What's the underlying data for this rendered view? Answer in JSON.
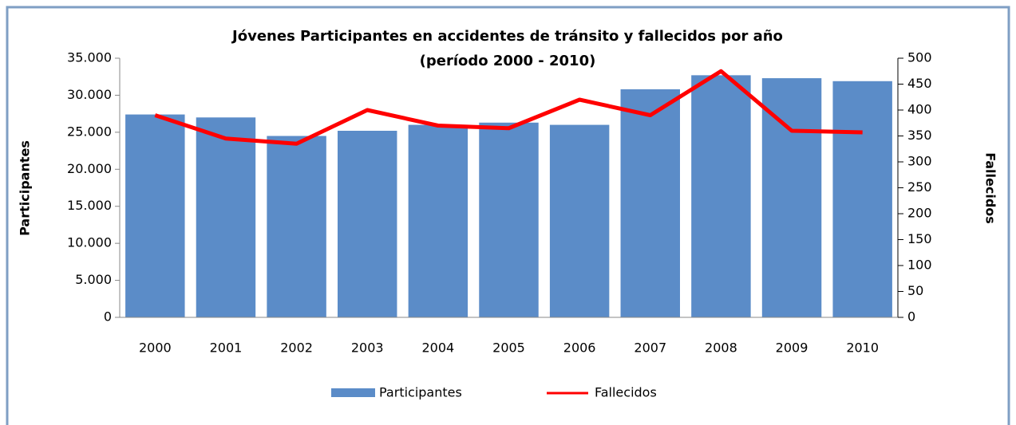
{
  "chart_data": {
    "type": "bar_line",
    "title": "Jóvenes Participantes en accidentes de tránsito y fallecidos por año",
    "subtitle": "(período 2000 - 2010)",
    "ylabel": "Participantes",
    "y2label": "Fallecidos",
    "categories": [
      "2000",
      "2001",
      "2002",
      "2003",
      "2004",
      "2005",
      "2006",
      "2007",
      "2008",
      "2009",
      "2010"
    ],
    "series": [
      {
        "name": "Participantes",
        "type": "bar",
        "color": "#5b8cc8",
        "values": [
          27400,
          27000,
          24500,
          25200,
          26000,
          26300,
          26000,
          30800,
          32700,
          32300,
          31900
        ]
      },
      {
        "name": "Fallecidos",
        "type": "line",
        "axis": "y2",
        "color": "#ff0000",
        "values": [
          390,
          345,
          335,
          400,
          370,
          365,
          420,
          390,
          475,
          360,
          357
        ]
      }
    ],
    "ylim": [
      0,
      35000
    ],
    "yticks": [
      0,
      {
        "value": 5000,
        "label": "5.000"
      },
      {
        "value": 10000,
        "label": "10.000"
      },
      {
        "value": 15000,
        "label": "15.000"
      },
      {
        "value": 20000,
        "label": "20.000"
      },
      {
        "value": 25000,
        "label": "25.000"
      },
      {
        "value": 30000,
        "label": "30.000"
      },
      {
        "value": 35000,
        "label": "35.000"
      }
    ],
    "y2lim": [
      0,
      500
    ],
    "y2ticks": [
      0,
      50,
      100,
      150,
      200,
      250,
      300,
      350,
      400,
      450,
      500
    ],
    "grid": false,
    "legend": "bottom"
  }
}
